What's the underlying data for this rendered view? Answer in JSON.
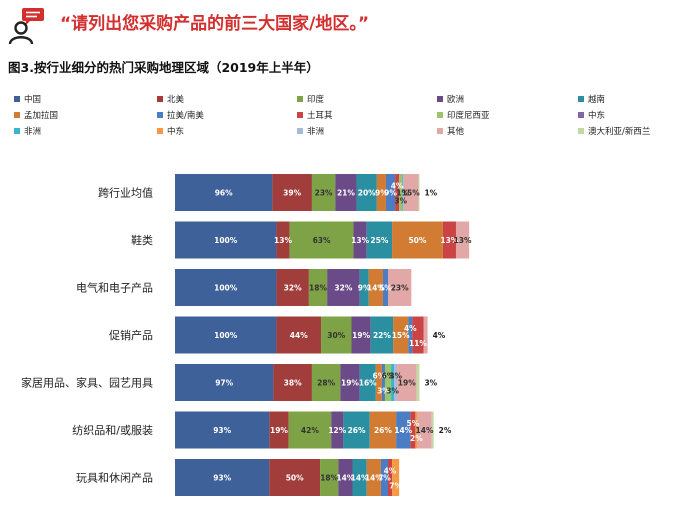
{
  "header": {
    "quote": "“请列出您采购产品的前三大国家/地区。”",
    "chart_title": "图3.按行业细分的热门采购地理区域（2019年上半年）"
  },
  "legend": [
    {
      "name": "中国",
      "color": "#3e6199"
    },
    {
      "name": "北美",
      "color": "#a13d3b"
    },
    {
      "name": "印度",
      "color": "#7ea346"
    },
    {
      "name": "欧洲",
      "color": "#6a4a87"
    },
    {
      "name": "越南",
      "color": "#2b8fa2"
    },
    {
      "name": "孟加拉国",
      "color": "#d27c33"
    },
    {
      "name": "拉美/南美",
      "color": "#4a7dc4"
    },
    {
      "name": "土耳其",
      "color": "#c94442"
    },
    {
      "name": "印度尼西亚",
      "color": "#9dc36a"
    },
    {
      "name": "中东",
      "color": "#8264a8"
    },
    {
      "name": "非洲",
      "color": "#38b6cf"
    },
    {
      "name": "中东",
      "color": "#f59a44"
    },
    {
      "name": "非洲",
      "color": "#a7bad8"
    },
    {
      "name": "其他",
      "color": "#e2a7a7"
    },
    {
      "name": "澳大利亚/新西兰",
      "color": "#c4d8a3"
    }
  ],
  "chart_data": {
    "type": "bar",
    "orientation": "horizontal",
    "stacked": true,
    "unit": "%",
    "title": "图3.按行业细分的热门采购地理区域（2019年上半年）",
    "categories": [
      "跨行业均值",
      "鞋类",
      "电气和电子产品",
      "促销产品",
      "家居用品、家具、园艺用具",
      "纺织品和/或服装",
      "玩具和休闲产品"
    ],
    "series": [
      {
        "name": "中国",
        "values": [
          96,
          100,
          100,
          100,
          97,
          93,
          93
        ]
      },
      {
        "name": "北美",
        "values": [
          39,
          13,
          32,
          44,
          38,
          19,
          50
        ]
      },
      {
        "name": "印度",
        "values": [
          23,
          63,
          18,
          30,
          28,
          42,
          18
        ]
      },
      {
        "name": "欧洲",
        "values": [
          21,
          13,
          32,
          19,
          19,
          12,
          14
        ]
      },
      {
        "name": "越南",
        "values": [
          20,
          25,
          9,
          22,
          16,
          26,
          14
        ]
      },
      {
        "name": "孟加拉国",
        "values": [
          9,
          50,
          14,
          15,
          6,
          26,
          14
        ]
      },
      {
        "name": "拉美/南美",
        "values": [
          9,
          0,
          5,
          4,
          3,
          14,
          7
        ]
      },
      {
        "name": "土耳其",
        "values": [
          4,
          13,
          0,
          11,
          0,
          5,
          4
        ]
      },
      {
        "name": "印度尼西亚",
        "values": [
          3,
          0,
          0,
          0,
          6,
          0,
          0
        ]
      },
      {
        "name": "中东",
        "values": [
          0,
          0,
          0,
          0,
          0,
          0,
          0
        ]
      },
      {
        "name": "非洲",
        "values": [
          1,
          0,
          0,
          0,
          3,
          0,
          0
        ]
      },
      {
        "name": "中东",
        "values": [
          0,
          0,
          0,
          0,
          0,
          2,
          7
        ]
      },
      {
        "name": "非洲",
        "values": [
          0,
          0,
          0,
          0,
          3,
          0,
          0
        ]
      },
      {
        "name": "其他",
        "values": [
          15,
          13,
          23,
          4,
          19,
          14,
          0
        ]
      },
      {
        "name": "澳大利亚/新西兰",
        "values": [
          1,
          0,
          0,
          0,
          3,
          2,
          0
        ]
      }
    ],
    "labels": [
      [
        {
          "s": 0,
          "t": "96%"
        },
        {
          "s": 1,
          "t": "39%"
        },
        {
          "s": 2,
          "t": "23%"
        },
        {
          "s": 3,
          "t": "21%"
        },
        {
          "s": 4,
          "t": "20%"
        },
        {
          "s": 5,
          "t": "9%"
        },
        {
          "s": 6,
          "t": "9%"
        },
        {
          "s": 7,
          "t": "4%",
          "p": "above"
        },
        {
          "s": 8,
          "t": "3%",
          "p": "below"
        },
        {
          "s": 10,
          "t": "1%"
        },
        {
          "s": 13,
          "t": "15%"
        },
        {
          "s": 14,
          "t": "1%",
          "p": "outside"
        }
      ],
      [
        {
          "s": 0,
          "t": "100%"
        },
        {
          "s": 1,
          "t": "13%"
        },
        {
          "s": 2,
          "t": "63%"
        },
        {
          "s": 3,
          "t": "13%"
        },
        {
          "s": 4,
          "t": "25%"
        },
        {
          "s": 5,
          "t": "50%"
        },
        {
          "s": 7,
          "t": "13%"
        },
        {
          "s": 13,
          "t": "13%"
        }
      ],
      [
        {
          "s": 0,
          "t": "100%"
        },
        {
          "s": 1,
          "t": "32%"
        },
        {
          "s": 2,
          "t": "18%"
        },
        {
          "s": 3,
          "t": "32%"
        },
        {
          "s": 4,
          "t": "9%"
        },
        {
          "s": 5,
          "t": "14%"
        },
        {
          "s": 6,
          "t": "5%"
        },
        {
          "s": 13,
          "t": "23%"
        }
      ],
      [
        {
          "s": 0,
          "t": "100%"
        },
        {
          "s": 1,
          "t": "44%"
        },
        {
          "s": 2,
          "t": "30%"
        },
        {
          "s": 3,
          "t": "19%"
        },
        {
          "s": 4,
          "t": "22%"
        },
        {
          "s": 5,
          "t": "15%"
        },
        {
          "s": 6,
          "t": "4%",
          "p": "above"
        },
        {
          "s": 7,
          "t": "11%",
          "p": "below"
        },
        {
          "s": 13,
          "t": "4%",
          "p": "outside"
        }
      ],
      [
        {
          "s": 0,
          "t": "97%"
        },
        {
          "s": 1,
          "t": "38%"
        },
        {
          "s": 2,
          "t": "28%"
        },
        {
          "s": 3,
          "t": "19%"
        },
        {
          "s": 4,
          "t": "16%"
        },
        {
          "s": 5,
          "t": "6%",
          "p": "above"
        },
        {
          "s": 6,
          "t": "3%",
          "p": "below"
        },
        {
          "s": 8,
          "t": "6%",
          "p": "above"
        },
        {
          "s": 10,
          "t": "3%",
          "p": "below"
        },
        {
          "s": 12,
          "t": "3%",
          "p": "above"
        },
        {
          "s": 13,
          "t": "19%"
        },
        {
          "s": 14,
          "t": "3%",
          "p": "outside"
        }
      ],
      [
        {
          "s": 0,
          "t": "93%"
        },
        {
          "s": 1,
          "t": "19%"
        },
        {
          "s": 2,
          "t": "42%"
        },
        {
          "s": 3,
          "t": "12%"
        },
        {
          "s": 4,
          "t": "26%"
        },
        {
          "s": 5,
          "t": "26%"
        },
        {
          "s": 6,
          "t": "14%"
        },
        {
          "s": 7,
          "t": "5%",
          "p": "above"
        },
        {
          "s": 11,
          "t": "2%",
          "p": "below"
        },
        {
          "s": 13,
          "t": "14%"
        },
        {
          "s": 14,
          "t": "2%",
          "p": "outside"
        }
      ],
      [
        {
          "s": 0,
          "t": "93%"
        },
        {
          "s": 1,
          "t": "50%"
        },
        {
          "s": 2,
          "t": "18%"
        },
        {
          "s": 3,
          "t": "14%"
        },
        {
          "s": 4,
          "t": "14%"
        },
        {
          "s": 5,
          "t": "14%"
        },
        {
          "s": 6,
          "t": "7%"
        },
        {
          "s": 7,
          "t": "4%",
          "p": "above"
        },
        {
          "s": 11,
          "t": "7%",
          "p": "below"
        }
      ]
    ],
    "xlim": [
      0,
      488
    ]
  }
}
